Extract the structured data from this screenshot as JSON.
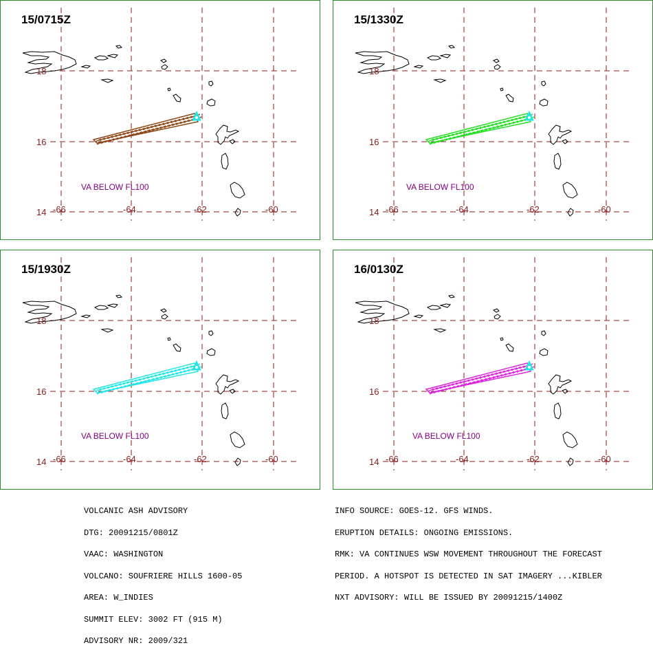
{
  "panels": [
    {
      "time": "15/0715Z",
      "color": "#8b4513",
      "va_text": "VA BELOW FL100"
    },
    {
      "time": "15/1330Z",
      "color": "#22dd22",
      "va_text": "VA  BELOW  FL100"
    },
    {
      "time": "15/1930Z",
      "color": "#22e5e5",
      "va_text": "VA BELOW FL100"
    },
    {
      "time": "16/0130Z",
      "color": "#dd22dd",
      "va_text": "VA BELOW FL100"
    }
  ],
  "map": {
    "lat_labels": [
      "18",
      "16",
      "14"
    ],
    "lon_labels": [
      "-66",
      "-64",
      "-62",
      "-60"
    ],
    "grid_color": "#8b1a1a",
    "coast_color": "#000000",
    "volcano_color": "#22e5e5"
  },
  "advisory_left": [
    "VOLCANIC ASH ADVISORY",
    "DTG: 20091215/0801Z",
    "VAAC: WASHINGTON",
    "VOLCANO: SOUFRIERE HILLS 1600-05",
    "AREA: W_INDIES",
    "SUMMIT ELEV: 3002 FT (915 M)",
    "ADVISORY NR: 2009/321"
  ],
  "advisory_right": [
    "INFO SOURCE: GOES-12. GFS WINDS.",
    "ERUPTION DETAILS: ONGOING EMISSIONS.",
    "RMK: VA CONTINUES WSW MOVEMENT THROUGHOUT THE FORECAST",
    "PERIOD. A HOTSPOT IS DETECTED IN SAT IMAGERY ...KIBLER",
    "NXT ADVISORY: WILL BE ISSUED BY 20091215/1400Z"
  ]
}
